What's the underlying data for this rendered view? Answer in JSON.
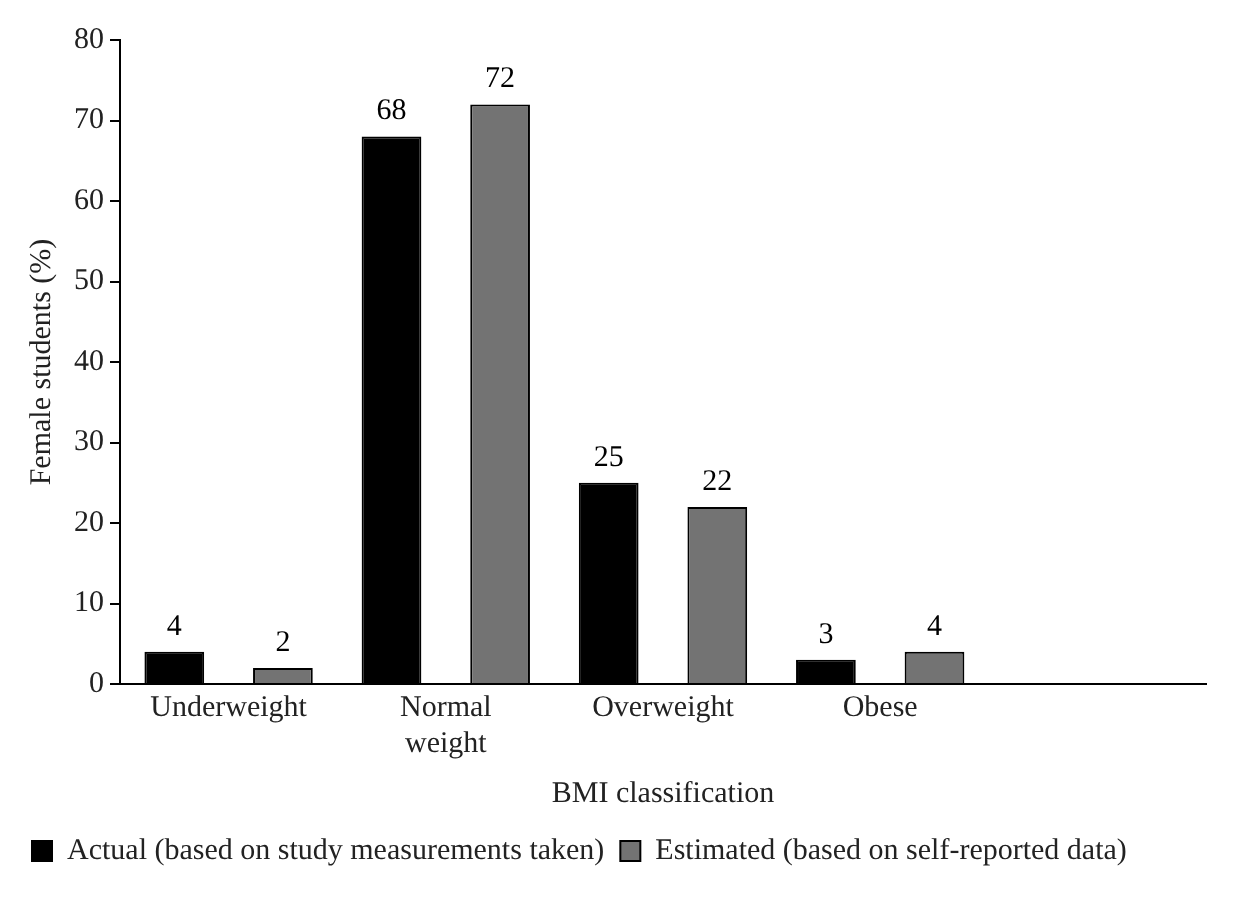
{
  "chart_data": {
    "type": "bar",
    "xlabel": "BMI classification",
    "ylabel": "Female students (%)",
    "categories": [
      "Underweight",
      "Normal weight",
      "Overweight",
      "Obese",
      null
    ],
    "series": [
      {
        "name": "Actual (based on study measurements taken)",
        "color": "#000000",
        "values": [
          4,
          68,
          25,
          3,
          null
        ]
      },
      {
        "name": "Estimated (based on self-reported data)",
        "color": "#737373",
        "values": [
          2,
          72,
          22,
          4,
          null
        ]
      }
    ],
    "ylim": [
      0,
      80
    ],
    "yticks": [
      0,
      10,
      20,
      30,
      40,
      50,
      60,
      70,
      80
    ],
    "grid": false,
    "legend": "bottom",
    "data_labels": true
  }
}
